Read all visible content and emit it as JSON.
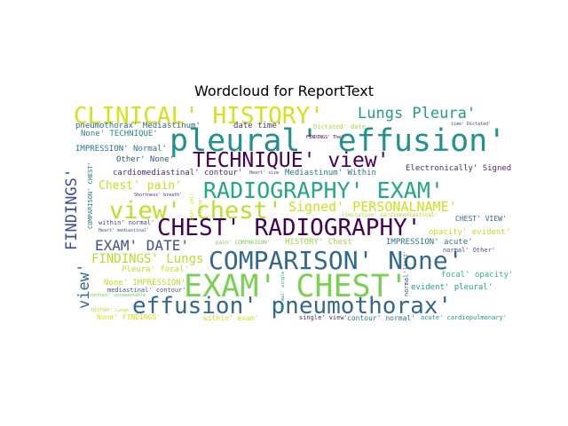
{
  "title": "Wordcloud for ReportText",
  "words": {
    "clinical_history": {
      "text": "CLINICAL' HISTORY'",
      "color": "#d2e21b"
    },
    "lungs_pleura": {
      "text": "Lungs Pleura'",
      "color": "#1f9e89"
    },
    "pleural_effusion": {
      "text": "pleural' effusion'",
      "color": "#21918c"
    },
    "pneumothorax_mediastinum": {
      "text": "pneumothorax' Mediastinum'",
      "color": "#31688e"
    },
    "date_time": {
      "text": "date time'",
      "color": "#443983"
    },
    "dictated_date": {
      "text": "Dictated' date",
      "color": "#a5db36"
    },
    "time_dictated": {
      "text": "time' Dictated'",
      "color": "#3e4a89"
    },
    "none_technique": {
      "text": "None' TECHNIQUE'",
      "color": "#26828e"
    },
    "findings_the": {
      "text": "FINDINGS' The'",
      "color": "#440154"
    },
    "impression_normal": {
      "text": "IMPRESSION' Normal'",
      "color": "#2c728e"
    },
    "technique_view": {
      "text": "TECHNIQUE' view'",
      "color": "#440154"
    },
    "other_none": {
      "text": "Other' None'",
      "color": "#3b528b"
    },
    "electronically_signed": {
      "text": "Electronically' Signed",
      "color": "#482878"
    },
    "cardiomediastinal_contour": {
      "text": "cardiomediastinal' contour'",
      "color": "#472d7b"
    },
    "heart_size": {
      "text": "Heart' size",
      "color": "#46337e"
    },
    "mediastinum_within": {
      "text": "Mediastinum' Within",
      "color": "#2a788e"
    },
    "chest_pain": {
      "text": "Chest' pain'",
      "color": "#c8e020"
    },
    "radiography_exam": {
      "text": "RADIOGRAPHY' EXAM'",
      "color": "#22a884"
    },
    "shortness_breath": {
      "text": "Shortness' breath'",
      "color": "#482173"
    },
    "view_chest": {
      "text": "view' chest'",
      "color": "#bddf26"
    },
    "signed_personalname": {
      "text": "Signed' PERSONALNAME'",
      "color": "#cde11d"
    },
    "limitation_cardiomediastinal": {
      "text": "limitation' cardiomediastinal'",
      "color": "#addc30"
    },
    "chest_view": {
      "text": "CHEST' VIEW'",
      "color": "#31688e"
    },
    "within_normal": {
      "text": "within' normal'",
      "color": "#3e4989"
    },
    "chest_radiography": {
      "text": "CHEST' RADIOGRAPHY'",
      "color": "#440154"
    },
    "heart_mediastinal": {
      "text": "Heart' mediastinal'",
      "color": "#3b528b"
    },
    "opacity_evident": {
      "text": "opacity' evident'",
      "color": "#c2df23"
    },
    "exam_date": {
      "text": "EXAM' DATE'",
      "color": "#3b528b"
    },
    "pain_comparison": {
      "text": "pain' COMPARISON'",
      "color": "#7ad151"
    },
    "history_chest": {
      "text": "HISTORY' Chest",
      "color": "#9bd93c"
    },
    "impression_acute": {
      "text": "IMPRESSION' acute'",
      "color": "#2c728e"
    },
    "normal_other": {
      "text": "normal' Other'",
      "color": "#3b528b"
    },
    "findings_lungs": {
      "text": "FINDINGS' Lungs",
      "color": "#b5de2b"
    },
    "comparison_none": {
      "text": "COMPARISON' None'",
      "color": "#31688e"
    },
    "pleura_focal": {
      "text": "Pleura' focal'",
      "color": "#cae11f"
    },
    "focal_opacity": {
      "text": "focal' opacity'",
      "color": "#35b779"
    },
    "exam_chest": {
      "text": "EXAM' CHEST'",
      "color": "#7ad151"
    },
    "none_impression": {
      "text": "None' IMPRESSION'",
      "color": "#bddf26"
    },
    "mediastinal_contour": {
      "text": "mediastinal' contour'",
      "color": "#3b528b"
    },
    "contour_unremarkable": {
      "text": "contour' unremarkable",
      "color": "#6ece58"
    },
    "evident_pleural": {
      "text": "evident' pleural'",
      "color": "#20a386"
    },
    "effusion_pneumothorax": {
      "text": "effusion' pneumothorax'",
      "color": "#31688e"
    },
    "history_lungs": {
      "text": "HISTORY' Lungs",
      "color": "#b5de2b"
    },
    "none_findings": {
      "text": "None' FINDINGS'",
      "color": "#d8e219"
    },
    "within_exam": {
      "text": "within' exam'",
      "color": "#cde11d"
    },
    "single_view": {
      "text": "single' view'",
      "color": "#472c7a"
    },
    "contour_normal": {
      "text": "contour' normal'",
      "color": "#2c728e"
    },
    "acute_cardiopulmonary": {
      "text": "acute' cardiopulmonary'",
      "color": "#21918c"
    },
    "findings_v": {
      "text": "FINDINGS'",
      "color": "#3b528b"
    },
    "view_v": {
      "text": "view'",
      "color": "#31688e"
    },
    "comparison_chest_v": {
      "text": "COMPARISON' CHEST'",
      "color": "#2a788e"
    },
    "date_2017_v": {
      "text": "DATE' 2017",
      "color": "#dde318"
    },
    "chest_v": {
      "text": "CHEST'",
      "color": "#addc30"
    },
    "limit_v": {
      "text": "limit'",
      "color": "#3e4a89"
    },
    "normal_v": {
      "text": "normal'",
      "color": "#3b528b"
    },
    "normal_single_v": {
      "text": "Normal' single",
      "color": "#20a386"
    }
  }
}
